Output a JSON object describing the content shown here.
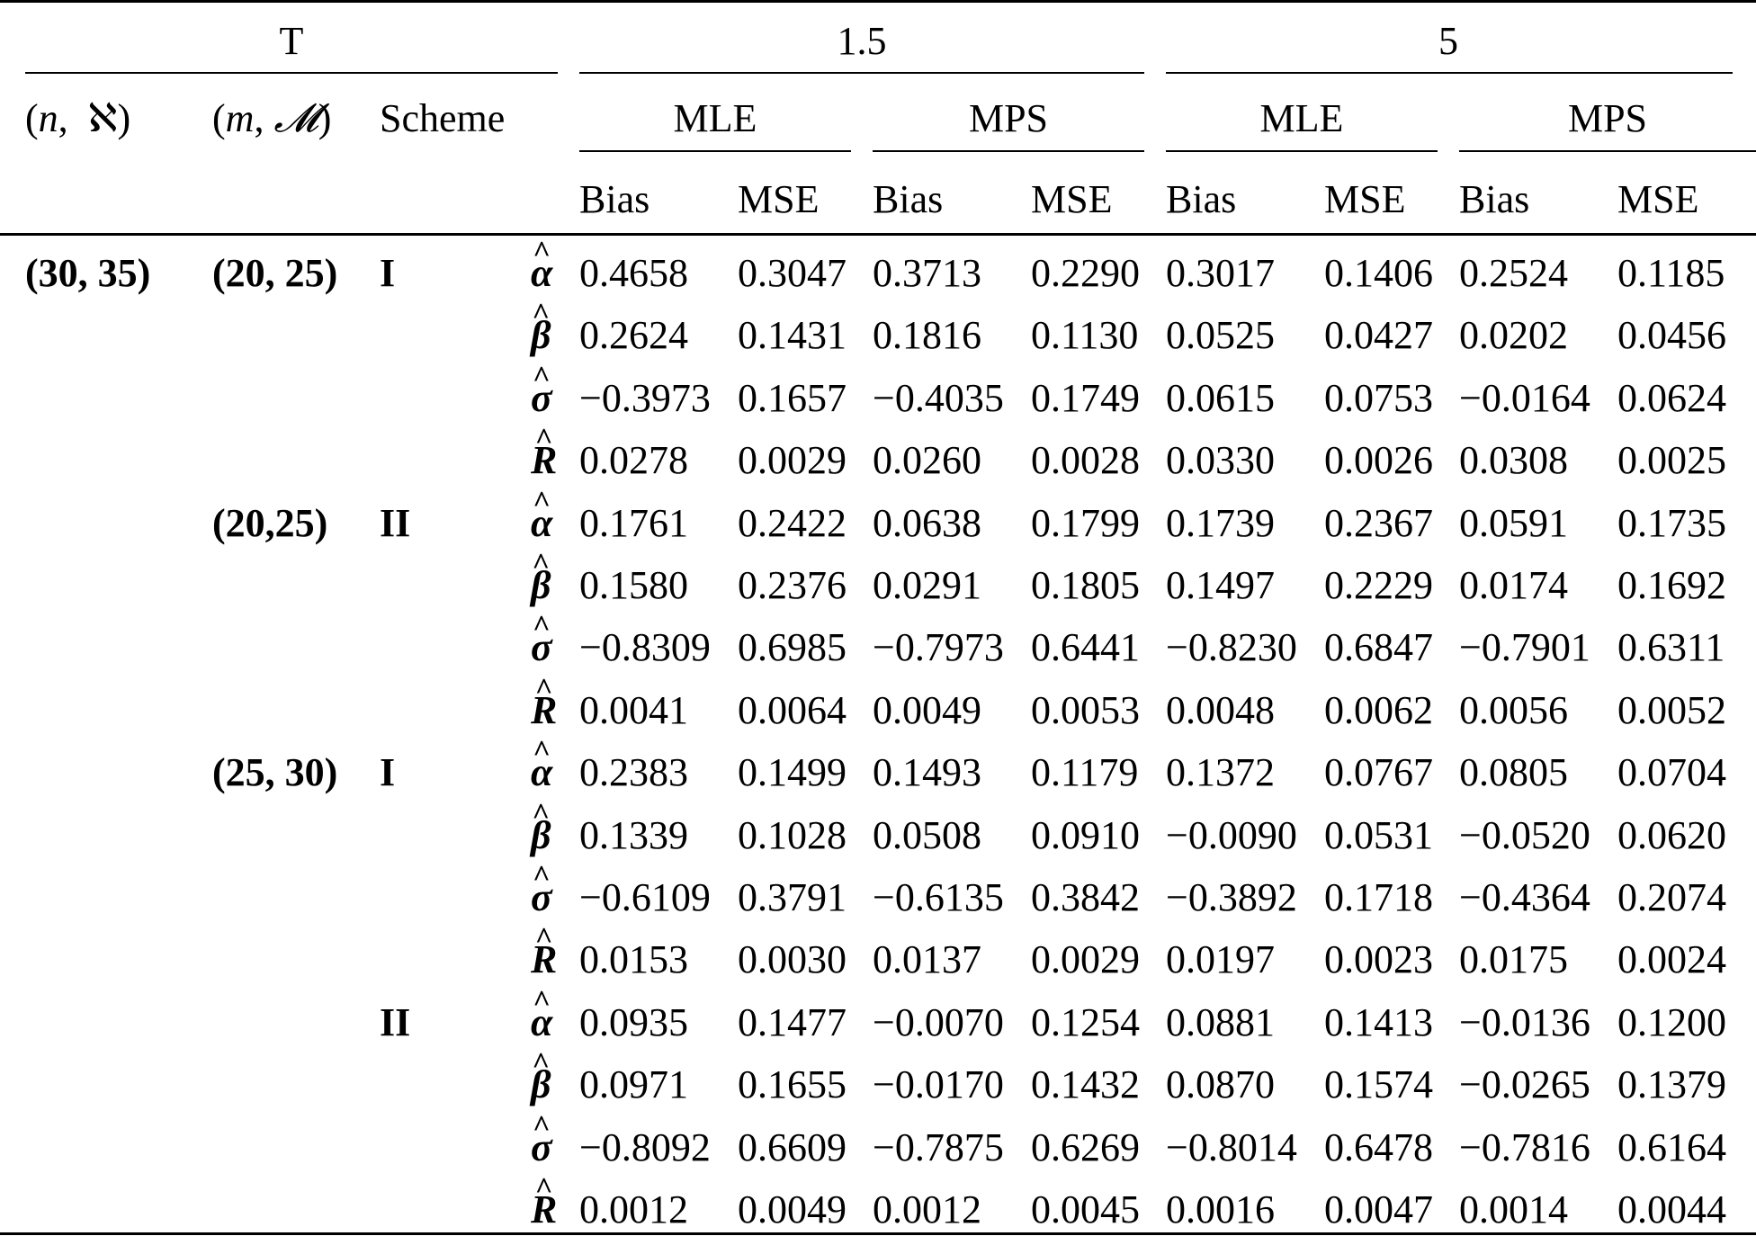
{
  "header": {
    "t_label": "T",
    "t_values": [
      "1.5",
      "5"
    ],
    "col_n": {
      "open": "(",
      "var1": "n",
      "sep": ",",
      "var2": "ℵ",
      "close": ")"
    },
    "col_m": {
      "open": "(",
      "var1": "m",
      "sep": ",",
      "var2": "𝓜",
      "close": ")"
    },
    "col_scheme": "Scheme",
    "methods": [
      "MLE",
      "MPS",
      "MLE",
      "MPS"
    ],
    "measures": [
      "Bias",
      "MSE",
      "Bias",
      "MSE",
      "Bias",
      "MSE",
      "Bias",
      "MSE"
    ]
  },
  "hat_symbol": "^",
  "rows": [
    {
      "n": "(30, 35)",
      "m": "(20, 25)",
      "scheme": "I",
      "param": "α",
      "vals": [
        "0.4658",
        "0.3047",
        "0.3713",
        "0.2290",
        "0.3017",
        "0.1406",
        "0.2524",
        "0.1185"
      ]
    },
    {
      "n": "",
      "m": "",
      "scheme": "",
      "param": "β",
      "vals": [
        "0.2624",
        "0.1431",
        "0.1816",
        "0.1130",
        "0.0525",
        "0.0427",
        "0.0202",
        "0.0456"
      ]
    },
    {
      "n": "",
      "m": "",
      "scheme": "",
      "param": "σ",
      "vals": [
        "−0.3973",
        "0.1657",
        "−0.4035",
        "0.1749",
        "0.0615",
        "0.0753",
        "−0.0164",
        "0.0624"
      ]
    },
    {
      "n": "",
      "m": "",
      "scheme": "",
      "param": "R",
      "vals": [
        "0.0278",
        "0.0029",
        "0.0260",
        "0.0028",
        "0.0330",
        "0.0026",
        "0.0308",
        "0.0025"
      ]
    },
    {
      "n": "",
      "m": "(20,25)",
      "scheme": "II",
      "param": "α",
      "vals": [
        "0.1761",
        "0.2422",
        "0.0638",
        "0.1799",
        "0.1739",
        "0.2367",
        "0.0591",
        "0.1735"
      ]
    },
    {
      "n": "",
      "m": "",
      "scheme": "",
      "param": "β",
      "vals": [
        "0.1580",
        "0.2376",
        "0.0291",
        "0.1805",
        "0.1497",
        "0.2229",
        "0.0174",
        "0.1692"
      ]
    },
    {
      "n": "",
      "m": "",
      "scheme": "",
      "param": "σ",
      "vals": [
        "−0.8309",
        "0.6985",
        "−0.7973",
        "0.6441",
        "−0.8230",
        "0.6847",
        "−0.7901",
        "0.6311"
      ]
    },
    {
      "n": "",
      "m": "",
      "scheme": "",
      "param": "R",
      "vals": [
        "0.0041",
        "0.0064",
        "0.0049",
        "0.0053",
        "0.0048",
        "0.0062",
        "0.0056",
        "0.0052"
      ]
    },
    {
      "n": "",
      "m": "(25, 30)",
      "scheme": "I",
      "param": "α",
      "vals": [
        "0.2383",
        "0.1499",
        "0.1493",
        "0.1179",
        "0.1372",
        "0.0767",
        "0.0805",
        "0.0704"
      ]
    },
    {
      "n": "",
      "m": "",
      "scheme": "",
      "param": "β",
      "vals": [
        "0.1339",
        "0.1028",
        "0.0508",
        "0.0910",
        "−0.0090",
        "0.0531",
        "−0.0520",
        "0.0620"
      ]
    },
    {
      "n": "",
      "m": "",
      "scheme": "",
      "param": "σ",
      "vals": [
        "−0.6109",
        "0.3791",
        "−0.6135",
        "0.3842",
        "−0.3892",
        "0.1718",
        "−0.4364",
        "0.2074"
      ]
    },
    {
      "n": "",
      "m": "",
      "scheme": "",
      "param": "R",
      "vals": [
        "0.0153",
        "0.0030",
        "0.0137",
        "0.0029",
        "0.0197",
        "0.0023",
        "0.0175",
        "0.0024"
      ]
    },
    {
      "n": "",
      "m": "",
      "scheme": "II",
      "param": "α",
      "vals": [
        "0.0935",
        "0.1477",
        "−0.0070",
        "0.1254",
        "0.0881",
        "0.1413",
        "−0.0136",
        "0.1200"
      ]
    },
    {
      "n": "",
      "m": "",
      "scheme": "",
      "param": "β",
      "vals": [
        "0.0971",
        "0.1655",
        "−0.0170",
        "0.1432",
        "0.0870",
        "0.1574",
        "−0.0265",
        "0.1379"
      ]
    },
    {
      "n": "",
      "m": "",
      "scheme": "",
      "param": "σ",
      "vals": [
        "−0.8092",
        "0.6609",
        "−0.7875",
        "0.6269",
        "−0.8014",
        "0.6478",
        "−0.7816",
        "0.6164"
      ]
    },
    {
      "n": "",
      "m": "",
      "scheme": "",
      "param": "R",
      "vals": [
        "0.0012",
        "0.0049",
        "0.0012",
        "0.0045",
        "0.0016",
        "0.0047",
        "0.0014",
        "0.0044"
      ]
    }
  ]
}
